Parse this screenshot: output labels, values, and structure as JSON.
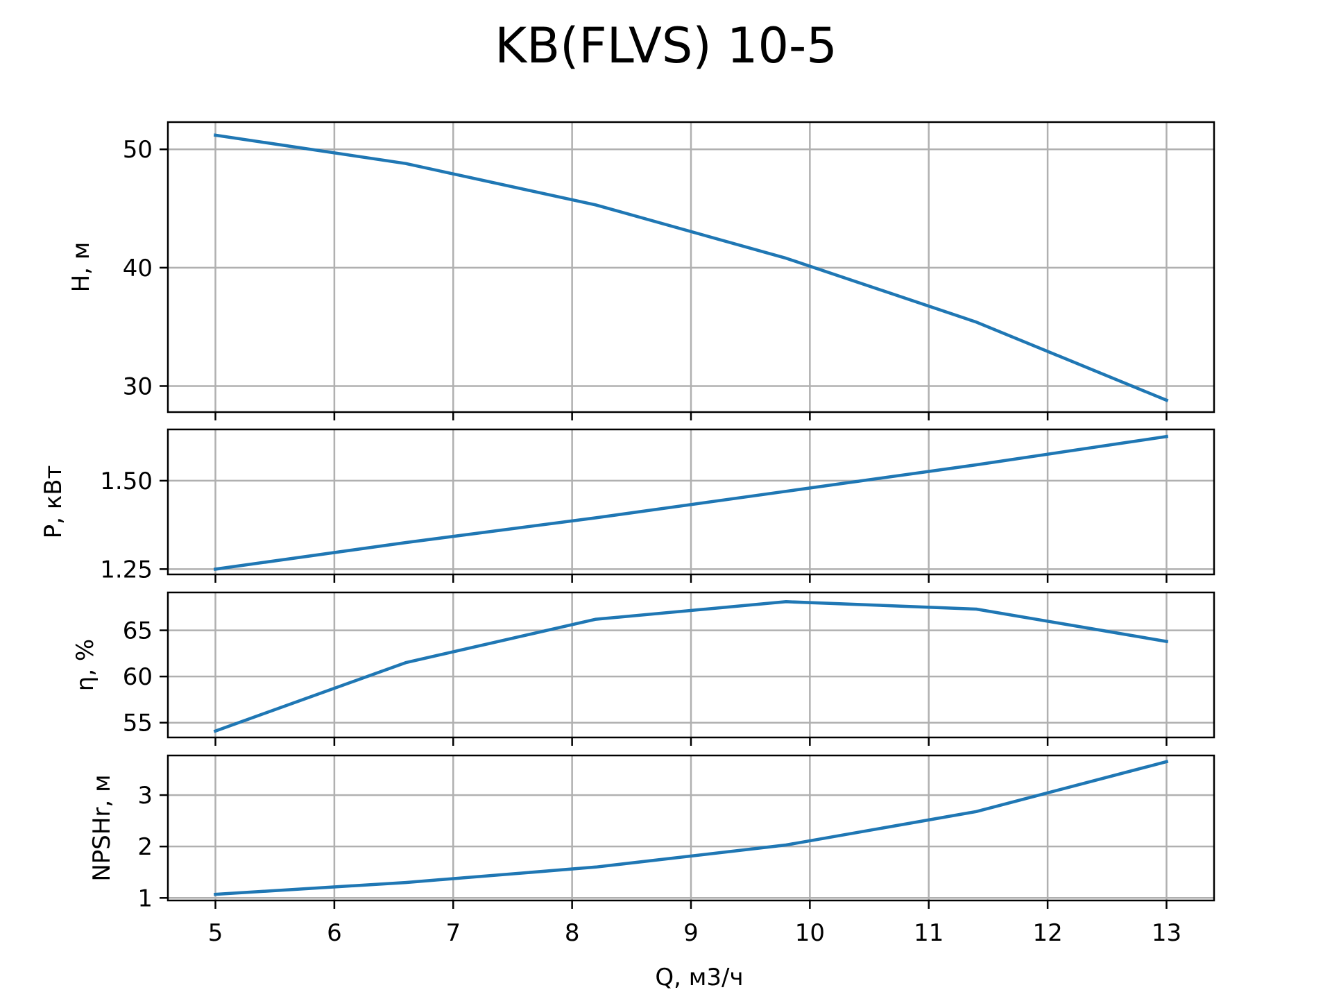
{
  "chart_data": {
    "type": "line",
    "title": "KB(FLVS) 10-5",
    "xlabel": "Q, м3/ч",
    "xlim": [
      4.6,
      13.4
    ],
    "xticks": [
      5,
      6,
      7,
      8,
      9,
      10,
      11,
      12,
      13
    ],
    "grid": true,
    "line_color": "#1f77b4",
    "panels": [
      {
        "ylabel": "H, м",
        "ylim": [
          27.8,
          52.3
        ],
        "yticks": [
          30,
          40,
          50
        ],
        "ytick_labels": [
          "30",
          "40",
          "50"
        ],
        "x": [
          5,
          6.6,
          8.2,
          9.8,
          11.4,
          13
        ],
        "y": [
          51.2,
          48.8,
          45.3,
          40.8,
          35.4,
          28.8
        ]
      },
      {
        "ylabel": "P, кВт",
        "ylim": [
          1.235,
          1.645
        ],
        "yticks": [
          1.25,
          1.5
        ],
        "ytick_labels": [
          "1.25",
          "1.50"
        ],
        "x": [
          5,
          6.6,
          8.2,
          9.8,
          11.4,
          13
        ],
        "y": [
          1.25,
          1.325,
          1.395,
          1.47,
          1.545,
          1.625
        ]
      },
      {
        "ylabel": "η, %",
        "ylim": [
          53.4,
          69.1
        ],
        "yticks": [
          55,
          60,
          65
        ],
        "ytick_labels": [
          "55",
          "60",
          "65"
        ],
        "x": [
          5,
          6.6,
          8.2,
          9.8,
          11.4,
          13
        ],
        "y": [
          54.1,
          61.5,
          66.2,
          68.1,
          67.3,
          63.8
        ]
      },
      {
        "ylabel": "NPSHr, м",
        "ylim": [
          0.95,
          3.77
        ],
        "yticks": [
          1,
          2,
          3
        ],
        "ytick_labels": [
          "1",
          "2",
          "3"
        ],
        "x": [
          5,
          6.6,
          8.2,
          9.8,
          11.4,
          13
        ],
        "y": [
          1.07,
          1.3,
          1.6,
          2.03,
          2.68,
          3.65
        ]
      }
    ]
  }
}
